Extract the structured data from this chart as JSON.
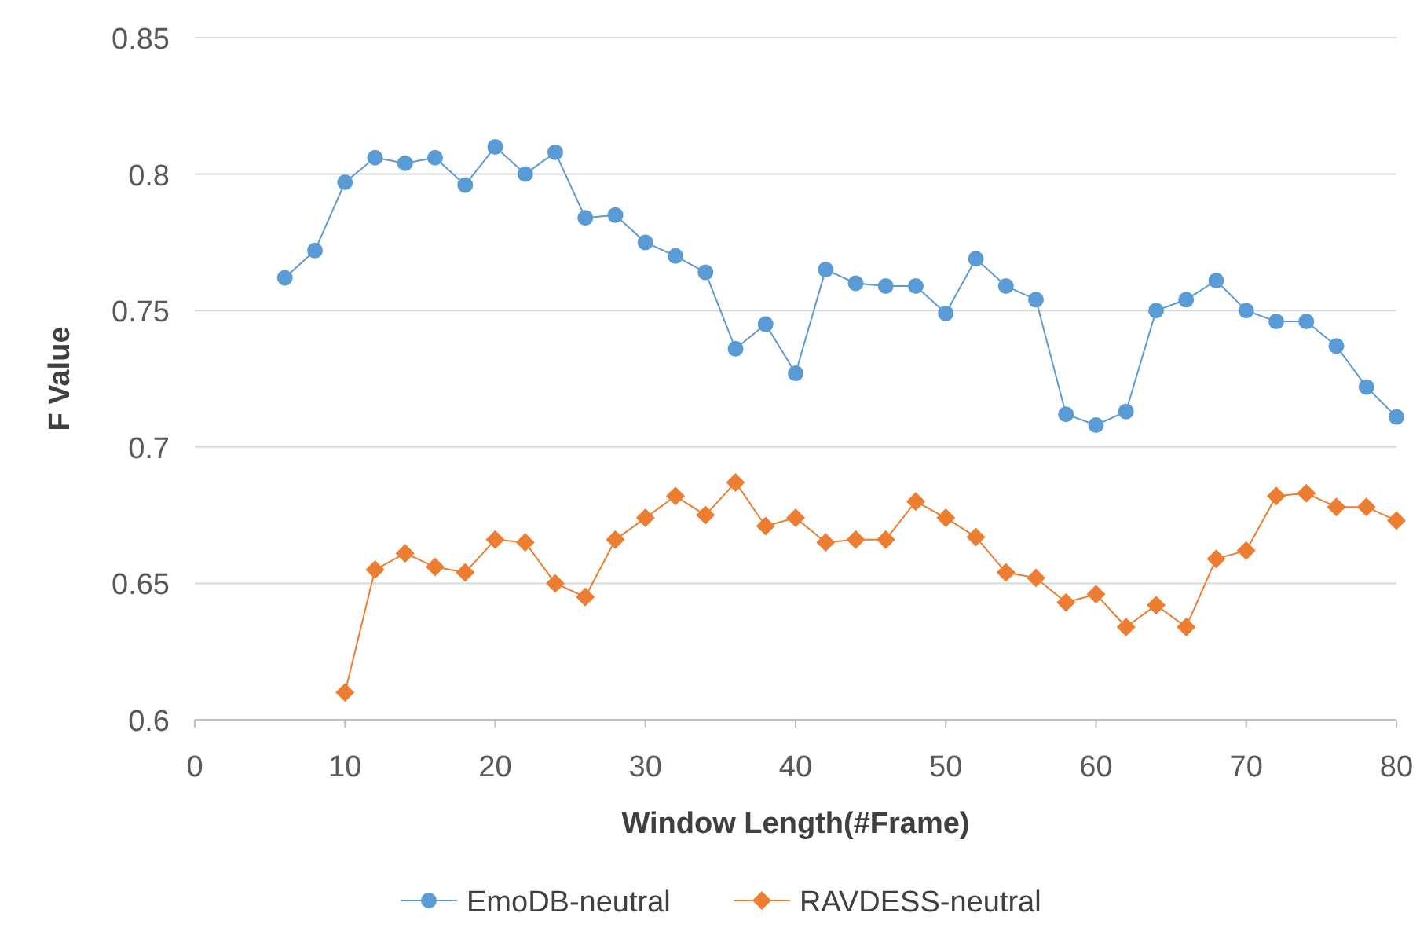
{
  "chart_data": {
    "type": "line",
    "xlabel": "Window Length(#Frame)",
    "ylabel": "F Value",
    "xlim": [
      0,
      80
    ],
    "xticks": [
      0,
      10,
      20,
      30,
      40,
      50,
      60,
      70,
      80
    ],
    "ylim": [
      0.6,
      0.85
    ],
    "yticks": [
      0.6,
      0.65,
      0.7,
      0.75,
      0.8,
      0.85
    ],
    "grid": "y",
    "legend": "bottom",
    "series": [
      {
        "name": "EmoDB-neutral",
        "color": "#5b9bd5",
        "marker": "circle",
        "x": [
          6,
          8,
          10,
          12,
          14,
          16,
          18,
          20,
          22,
          24,
          26,
          28,
          30,
          32,
          34,
          36,
          38,
          40,
          42,
          44,
          46,
          48,
          50,
          52,
          54,
          56,
          58,
          60,
          62,
          64,
          66,
          68,
          70,
          72,
          74,
          76,
          78,
          80
        ],
        "values": [
          0.762,
          0.772,
          0.797,
          0.806,
          0.804,
          0.806,
          0.796,
          0.81,
          0.8,
          0.808,
          0.784,
          0.785,
          0.775,
          0.77,
          0.764,
          0.736,
          0.745,
          0.727,
          0.765,
          0.76,
          0.759,
          0.759,
          0.749,
          0.769,
          0.759,
          0.754,
          0.712,
          0.708,
          0.713,
          0.75,
          0.754,
          0.761,
          0.75,
          0.746,
          0.746,
          0.737,
          0.722,
          0.711
        ]
      },
      {
        "name": "RAVDESS-neutral",
        "color": "#ed7d31",
        "marker": "diamond",
        "x": [
          10,
          12,
          14,
          16,
          18,
          20,
          22,
          24,
          26,
          28,
          30,
          32,
          34,
          36,
          38,
          40,
          42,
          44,
          46,
          48,
          50,
          52,
          54,
          56,
          58,
          60,
          62,
          64,
          66,
          68,
          70,
          72,
          74,
          76,
          78,
          80
        ],
        "values": [
          0.61,
          0.655,
          0.661,
          0.656,
          0.654,
          0.666,
          0.665,
          0.65,
          0.645,
          0.666,
          0.674,
          0.682,
          0.675,
          0.687,
          0.671,
          0.674,
          0.665,
          0.666,
          0.666,
          0.68,
          0.674,
          0.667,
          0.654,
          0.652,
          0.643,
          0.646,
          0.634,
          0.642,
          0.634,
          0.659,
          0.662,
          0.682,
          0.683,
          0.678,
          0.678,
          0.673
        ]
      }
    ]
  }
}
